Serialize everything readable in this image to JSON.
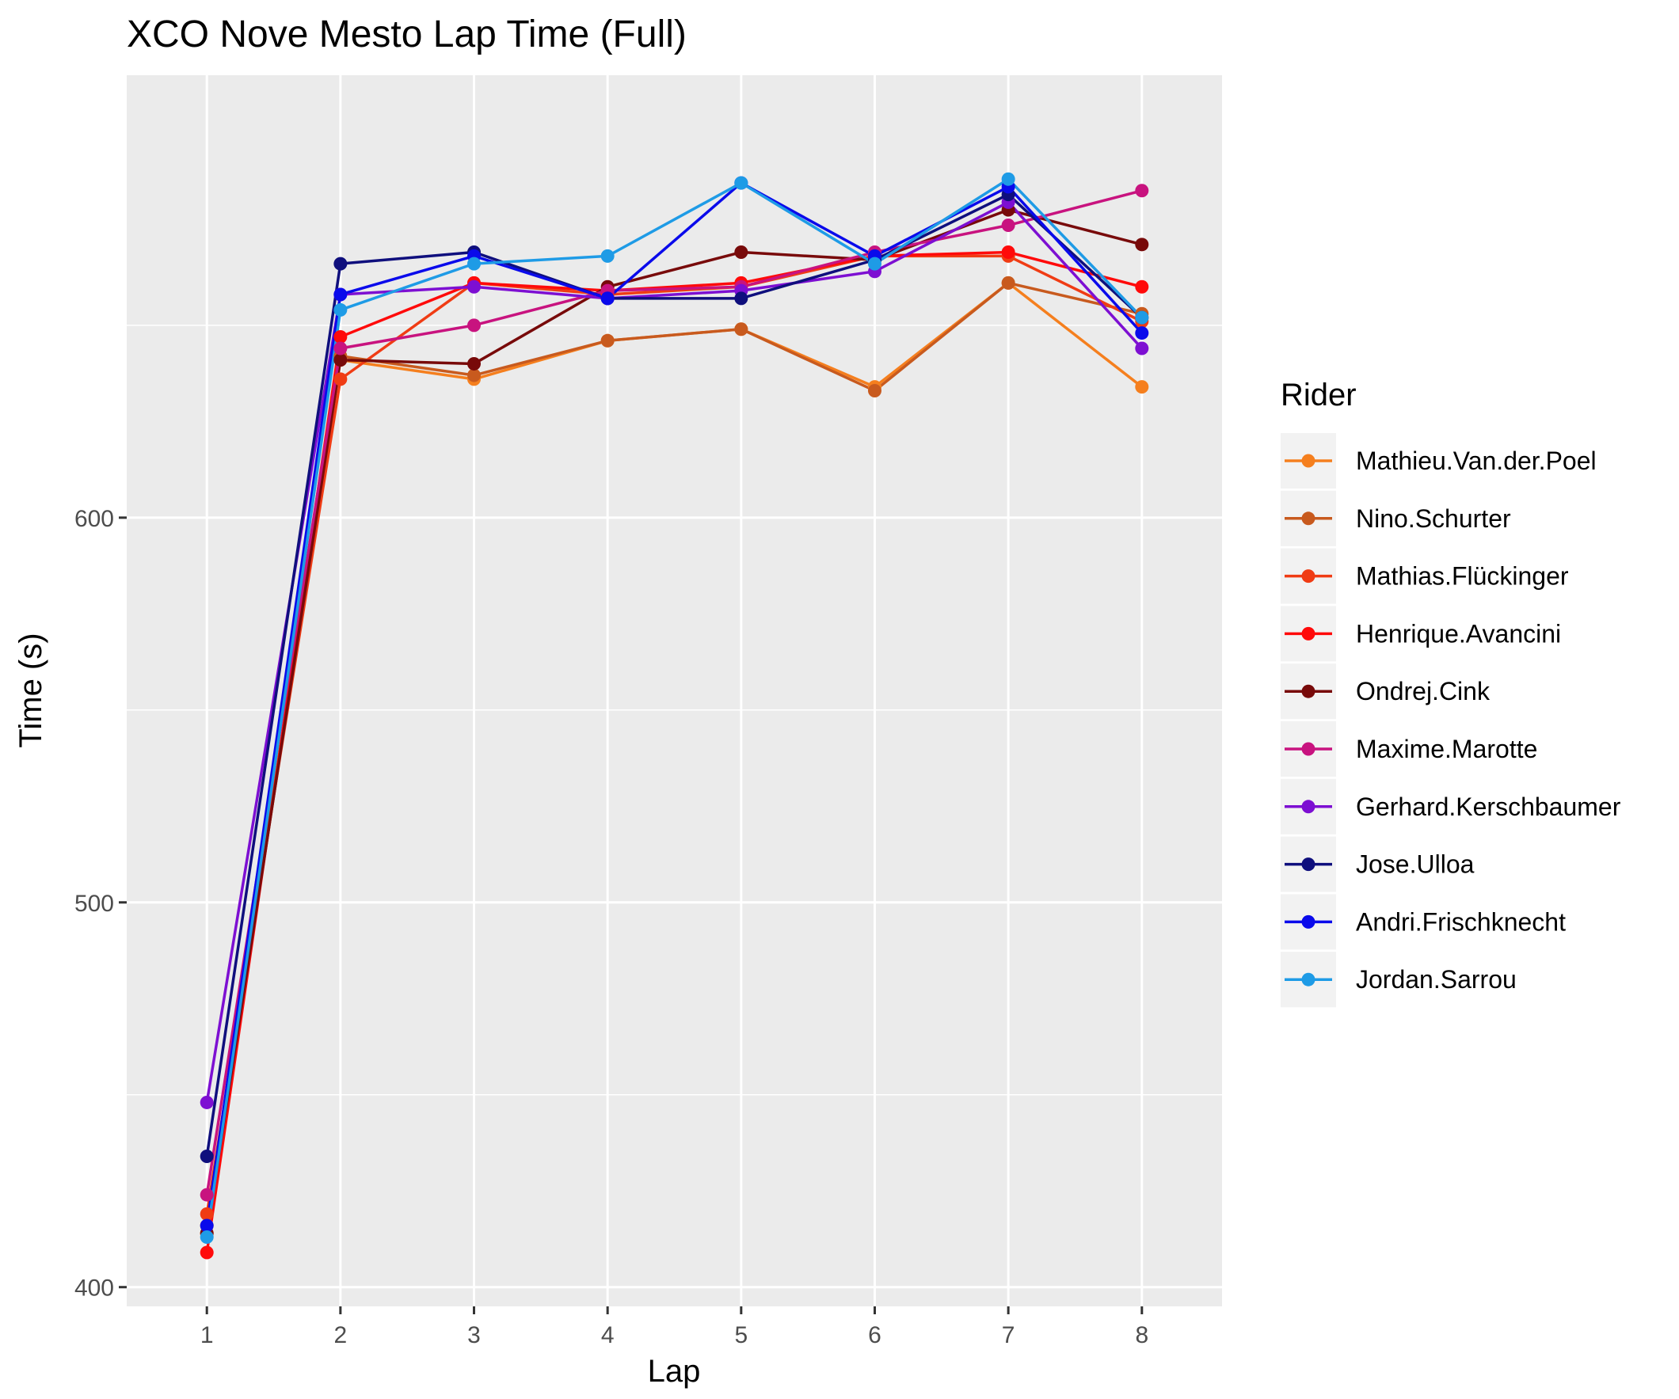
{
  "chart_data": {
    "type": "line",
    "title": "XCO Nove Mesto Lap Time (Full)",
    "xlabel": "Lap",
    "ylabel": "Time (s)",
    "x": [
      1,
      2,
      3,
      4,
      5,
      6,
      7,
      8
    ],
    "xlim": [
      0.4,
      8.6
    ],
    "ylim": [
      395,
      715
    ],
    "yticks": [
      400,
      500,
      600
    ],
    "grid": true,
    "legend_title": "Rider",
    "legend_position": "right",
    "series": [
      {
        "name": "Mathieu.Van.der.Poel",
        "color": "#F57F1E",
        "values": [
          414,
          641,
          636,
          646,
          649,
          634,
          661,
          634
        ]
      },
      {
        "name": "Nino.Schurter",
        "color": "#C85A1E",
        "values": [
          416,
          642,
          637,
          646,
          649,
          633,
          661,
          653
        ]
      },
      {
        "name": "Mathias.Flückinger",
        "color": "#F03C14",
        "values": [
          419,
          636,
          661,
          658,
          660,
          668,
          668,
          651
        ]
      },
      {
        "name": "Henrique.Avancini",
        "color": "#FF0A0A",
        "values": [
          409,
          647,
          661,
          659,
          661,
          668,
          669,
          660
        ]
      },
      {
        "name": "Ondrej.Cink",
        "color": "#780A0A",
        "values": [
          414,
          641,
          640,
          660,
          669,
          667,
          680,
          671
        ]
      },
      {
        "name": "Maxime.Marotte",
        "color": "#C8137F",
        "values": [
          424,
          644,
          650,
          659,
          660,
          669,
          676,
          685
        ]
      },
      {
        "name": "Gerhard.Kerschbaumer",
        "color": "#7D0FD2",
        "values": [
          448,
          658,
          660,
          657,
          659,
          664,
          682,
          644
        ]
      },
      {
        "name": "Jose.Ulloa",
        "color": "#0F0F7D",
        "values": [
          434,
          666,
          669,
          657,
          657,
          667,
          684,
          652
        ]
      },
      {
        "name": "Andri.Frischknecht",
        "color": "#0A0AEB",
        "values": [
          416,
          658,
          668,
          657,
          687,
          668,
          686,
          648
        ]
      },
      {
        "name": "Jordan.Sarrou",
        "color": "#1E9BE6",
        "values": [
          413,
          654,
          666,
          668,
          687,
          666,
          688,
          652
        ]
      }
    ]
  }
}
